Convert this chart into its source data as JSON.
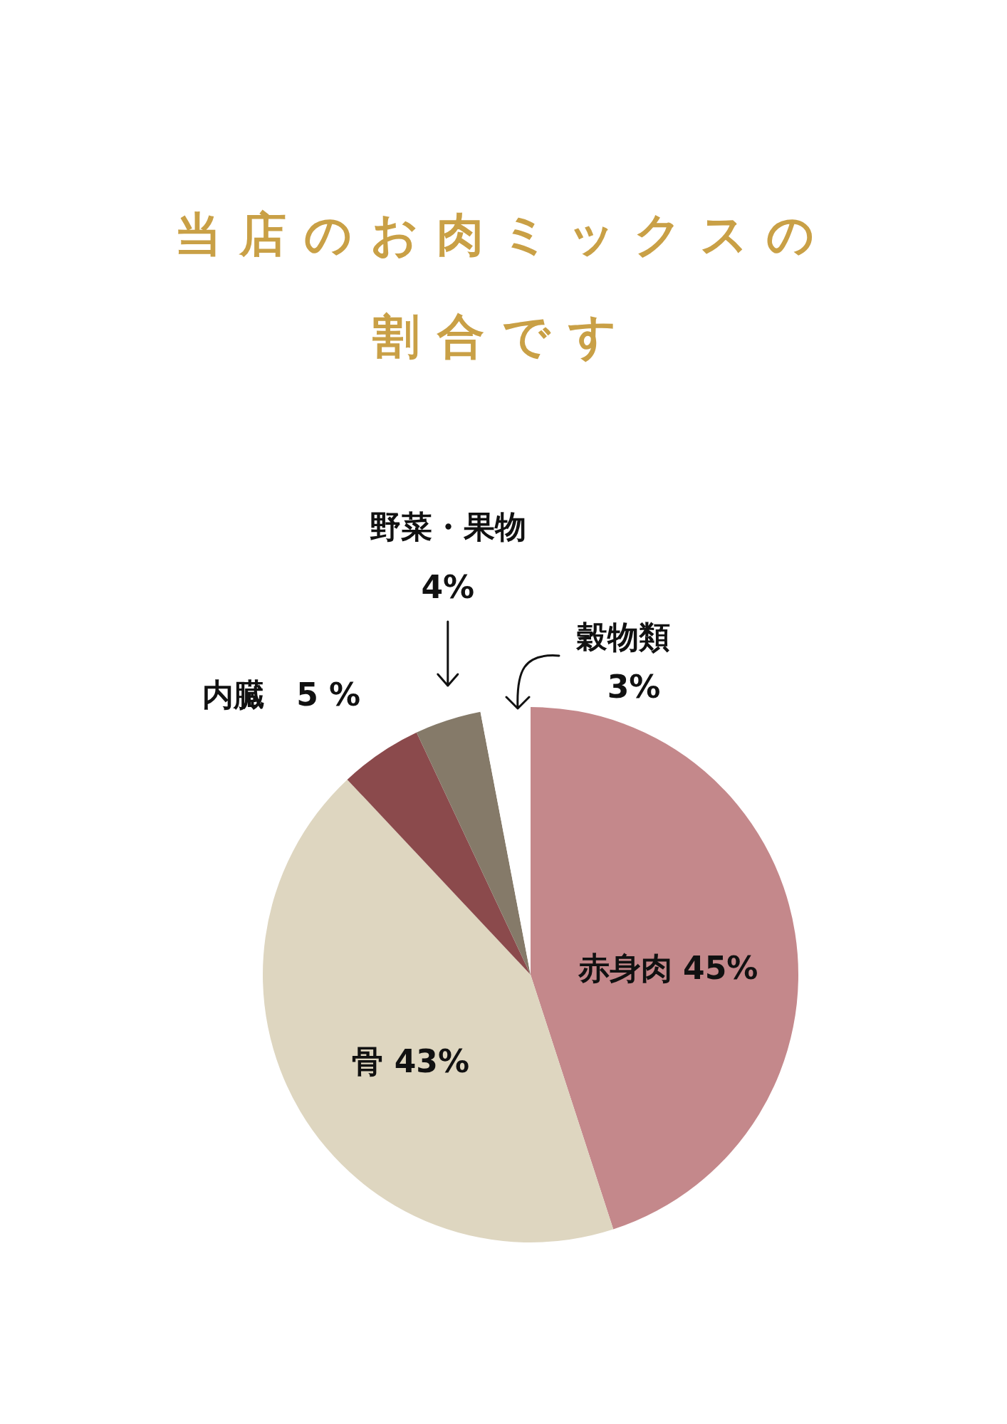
{
  "chart_data": {
    "type": "pie",
    "title": "当店のお肉ミックスの割合です",
    "categories": [
      "赤身肉",
      "骨",
      "内臓",
      "野菜・果物",
      "穀物類"
    ],
    "values": [
      45,
      43,
      5,
      4,
      3
    ],
    "colors": [
      "#c4888b",
      "#ded6c0",
      "#8b4a4c",
      "#857a69",
      "#ffffff"
    ],
    "value_labels": [
      "45%",
      "43%",
      "5 %",
      "4%",
      "3%"
    ]
  }
}
